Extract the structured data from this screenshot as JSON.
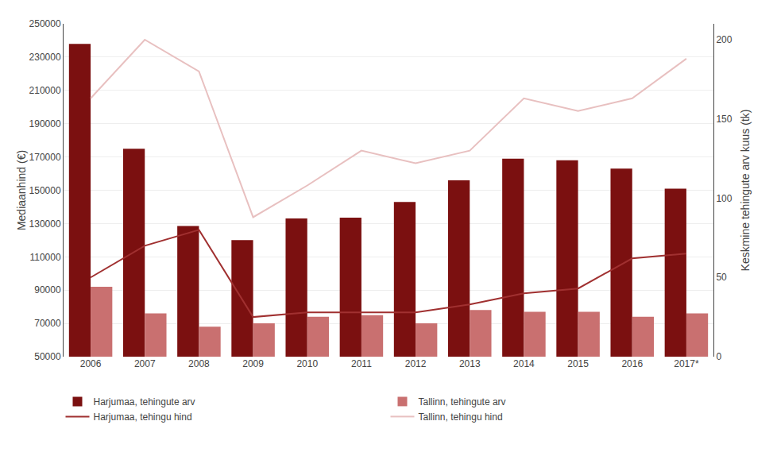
{
  "chart_data": {
    "type": "bar",
    "categories": [
      "2006",
      "2007",
      "2008",
      "2009",
      "2010",
      "2011",
      "2012",
      "2013",
      "2014",
      "2015",
      "2016",
      "2017*"
    ],
    "series": [
      {
        "name": "Harjumaa, tehingute arv",
        "type": "bar",
        "color": "#7B1010",
        "values": [
          238000,
          175000,
          128500,
          120000,
          133000,
          133500,
          143000,
          156000,
          169000,
          168000,
          163000,
          151000
        ]
      },
      {
        "name": "Tallinn, tehingute arv",
        "type": "bar",
        "color": "#C97070",
        "values": [
          92000,
          76000,
          68000,
          70000,
          74000,
          75000,
          70000,
          78000,
          77000,
          77000,
          74000,
          76000
        ]
      },
      {
        "name": "Harjumaa, tehingu hind",
        "type": "line",
        "axis": "y2",
        "color": "#A03030",
        "values": [
          50,
          70,
          80,
          25,
          28,
          28,
          28,
          33,
          40,
          43,
          62,
          65
        ]
      },
      {
        "name": "Tallinn, tehingu hind",
        "type": "line",
        "axis": "y2",
        "color": "#E8C0C0",
        "values": [
          163,
          200,
          180,
          88,
          108,
          130,
          122,
          130,
          163,
          155,
          163,
          188
        ]
      }
    ],
    "ylabel": "Mediaanhind (€)",
    "y2label": "Keskmine tehingute arv kuus (tk)",
    "ylim": [
      50000,
      250000
    ],
    "yticks": [
      50000,
      70000,
      90000,
      110000,
      130000,
      150000,
      170000,
      190000,
      210000,
      230000,
      250000
    ],
    "y2lim": [
      0,
      210
    ],
    "y2ticks": [
      0,
      50,
      100,
      150,
      200
    ],
    "grid": true,
    "legend": "bottom"
  }
}
